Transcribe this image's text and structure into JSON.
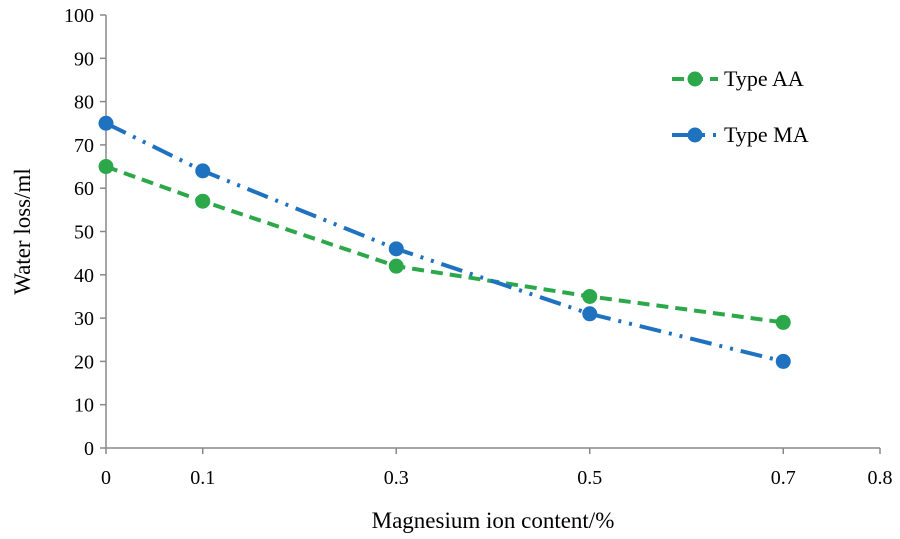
{
  "chart_data": {
    "type": "line",
    "title": "",
    "xlabel": "Magnesium ion content/%",
    "ylabel": "Water loss/ml",
    "xlim": [
      0,
      0.8
    ],
    "ylim": [
      0,
      100
    ],
    "x_ticks": [
      {
        "value": 0,
        "label": "0"
      },
      {
        "value": 0.1,
        "label": "0.1"
      },
      {
        "value": 0.3,
        "label": "0.3"
      },
      {
        "value": 0.5,
        "label": "0.5"
      },
      {
        "value": 0.7,
        "label": "0.7"
      },
      {
        "value": 0.8,
        "label": "0.8"
      }
    ],
    "y_ticks": [
      0,
      10,
      20,
      30,
      40,
      50,
      60,
      70,
      80,
      90,
      100
    ],
    "grid": false,
    "legend_position": "top-right",
    "series": [
      {
        "name": "Type AA",
        "color": "#2ca84a",
        "line_style": "dashed",
        "x": [
          0,
          0.1,
          0.3,
          0.5,
          0.7
        ],
        "values": [
          65,
          57,
          42,
          35,
          29
        ]
      },
      {
        "name": "Type MA",
        "color": "#1f72c0",
        "line_style": "dash-dot-dot",
        "x": [
          0,
          0.1,
          0.3,
          0.5,
          0.7
        ],
        "values": [
          75,
          64,
          46,
          31,
          20
        ]
      }
    ]
  }
}
